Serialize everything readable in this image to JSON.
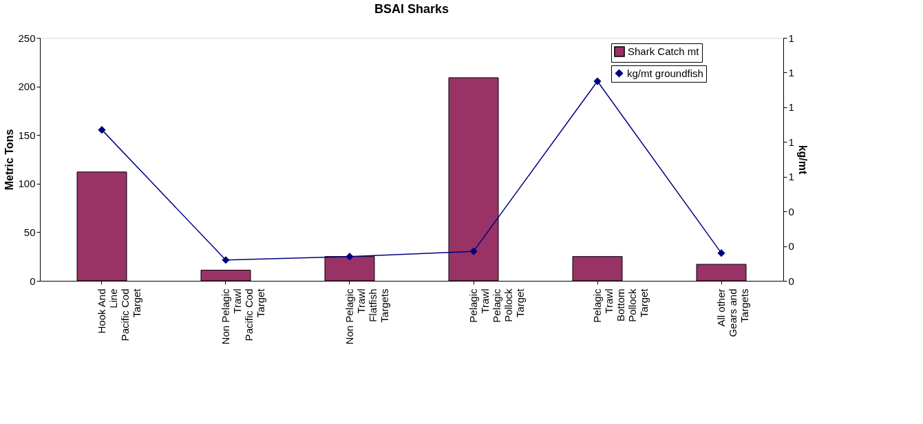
{
  "chart_data": {
    "type": "bar",
    "title": "BSAI Sharks",
    "ylabel": "Metric Tons",
    "y2label": "kg/mt",
    "categories": [
      "Hook And Line Pacific Cod Target",
      "Non Pelagic Trawl Pacific Cod Target",
      "Non Pelagic Trawl Flatfish Targets",
      "Pelagic Trawl Pelagic Pollock Target",
      "Pelagic Trawl Bottom Pollock Target",
      "All other Gears and Targets"
    ],
    "series": [
      {
        "name": "Shark Catch mt",
        "color": "#993366",
        "values": [
          112,
          11,
          25,
          209,
          25,
          17
        ]
      },
      {
        "name": "kg/mt groundfish",
        "type": "line",
        "axis": "y2",
        "color": "#000080",
        "marker": "diamond",
        "values": [
          0.87,
          0.12,
          0.14,
          0.17,
          1.15,
          0.16
        ]
      }
    ],
    "ylim": [
      0,
      250
    ],
    "yticks": [
      0,
      50,
      100,
      150,
      200,
      250
    ],
    "y2lim": [
      0,
      1.4
    ],
    "y2ticks": [
      {
        "value": 0,
        "label": "0"
      },
      {
        "value": 0.2,
        "label": "0"
      },
      {
        "value": 0.4,
        "label": "0"
      },
      {
        "value": 0.6,
        "label": "1"
      },
      {
        "value": 0.8,
        "label": "1"
      },
      {
        "value": 1.0,
        "label": "1"
      },
      {
        "value": 1.2,
        "label": "1"
      },
      {
        "value": 1.4,
        "label": "1"
      }
    ],
    "grid": false,
    "legend": "top right"
  }
}
